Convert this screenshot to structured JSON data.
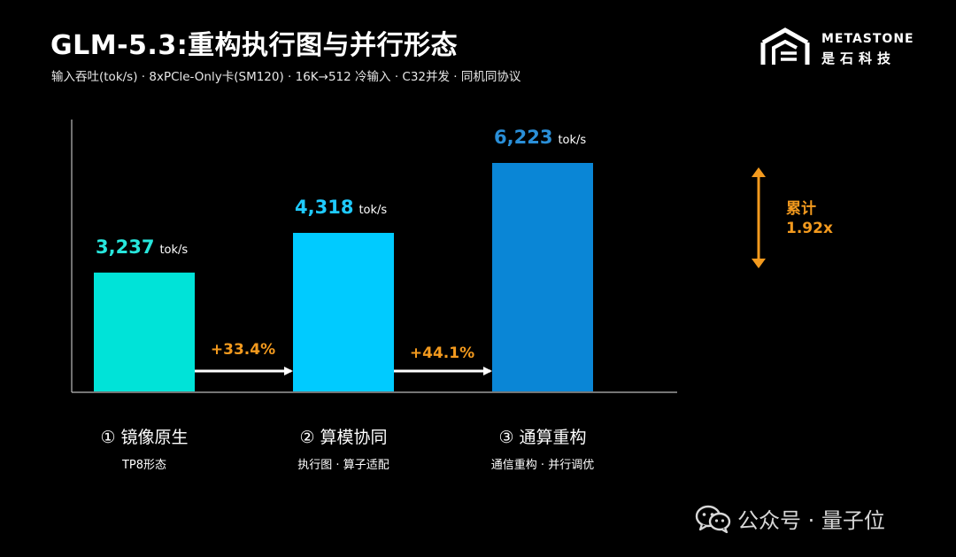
{
  "header": {
    "title": "GLM-5.3:重构执行图与并行形态",
    "subtitle": "输入吞吐(tok/s) · 8xPCle-Only卡(SM120) · 16K→512 冷输入 · C32并发 · 同机同协议"
  },
  "brand": {
    "name_en": "METASTONE",
    "name_cn": "是石科技"
  },
  "chart_data": {
    "type": "bar",
    "categories": [
      "① 镜像原生",
      "② 算模协同",
      "③ 通算重构"
    ],
    "category_subtitles": [
      "TP8形态",
      "执行图 · 算子适配",
      "通信重构 · 并行调优"
    ],
    "values": [
      3237,
      4318,
      6223
    ],
    "value_labels": [
      "3,237",
      "4,318",
      "6,223"
    ],
    "unit": "tok/s",
    "bar_colors": [
      "#00e3d8",
      "#00cbff",
      "#0a86d6"
    ],
    "value_label_colors": [
      "#27e6dc",
      "#1fcaff",
      "#2a8fd8"
    ],
    "improvements": [
      "+33.4%",
      "+44.1%"
    ],
    "cumulative_label": "累计",
    "cumulative_value": "1.92x",
    "accent_color": "#f39a1e"
  },
  "watermark": {
    "icon": "wechat-icon",
    "text": "公众号 · 量子位"
  }
}
